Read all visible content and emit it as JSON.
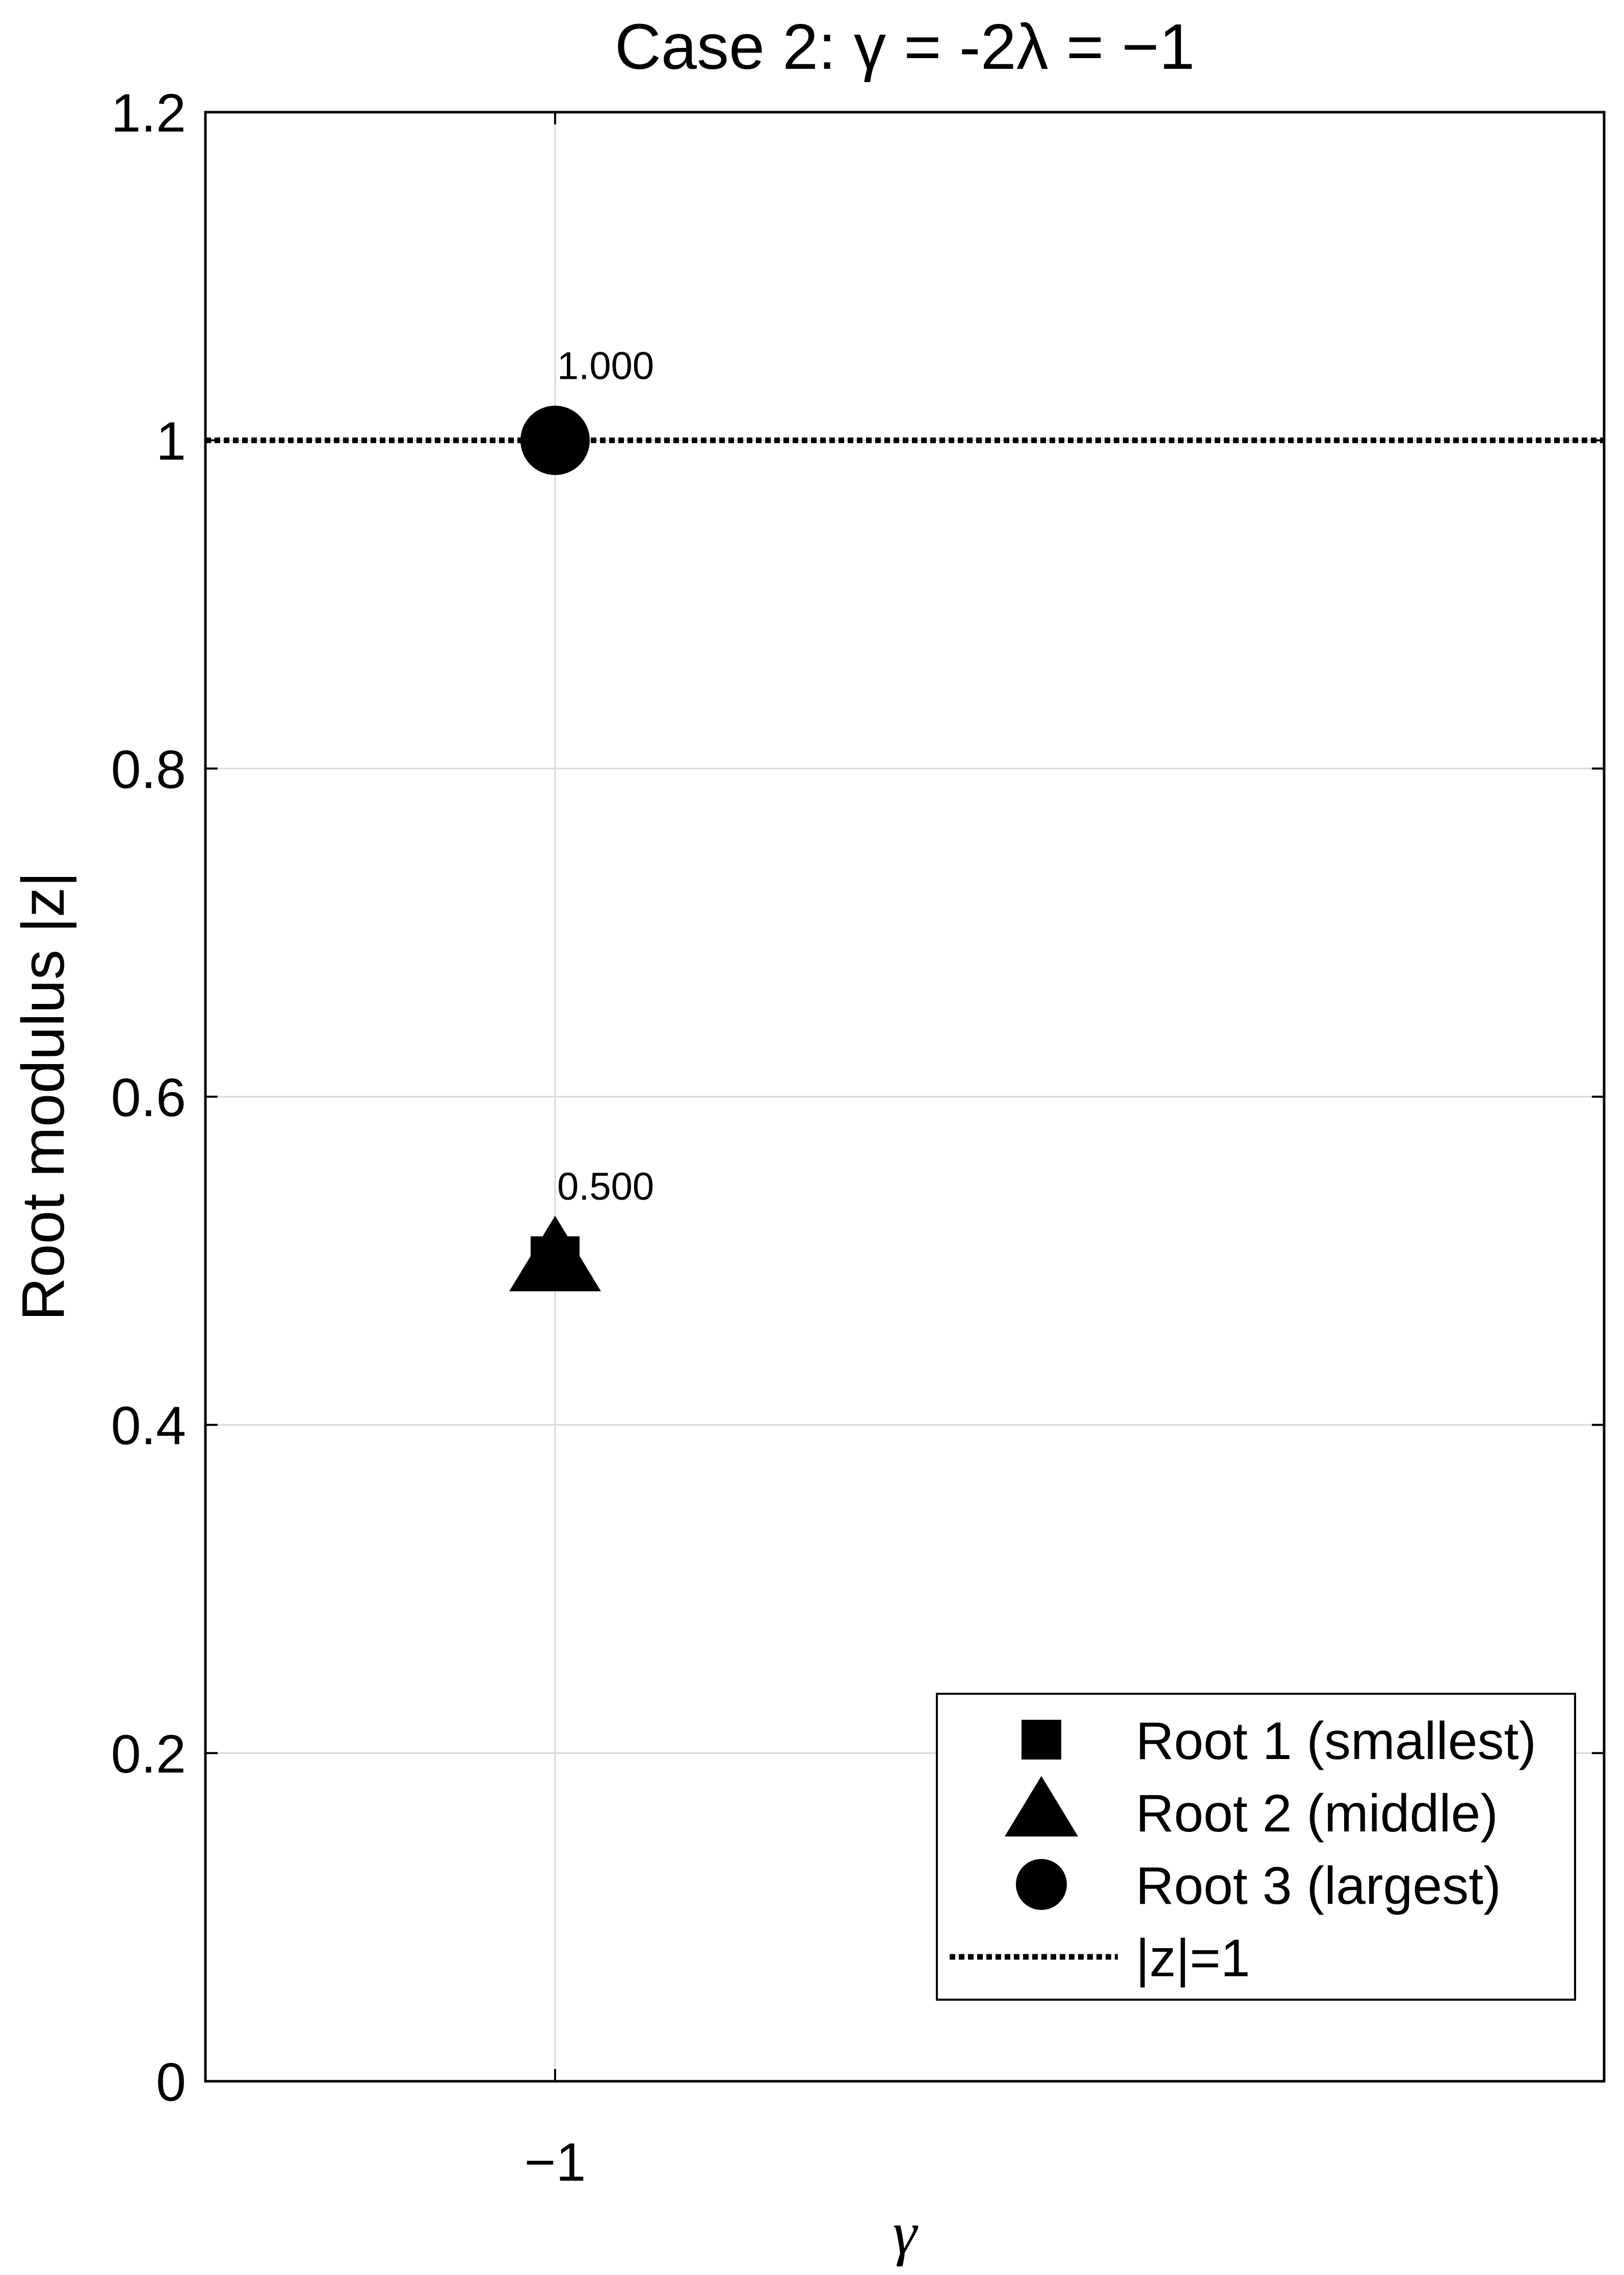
{
  "chart_data": {
    "type": "scatter",
    "title": "Case 2: γ = -2λ = −1",
    "xlabel": "γ",
    "ylabel": "Root modulus |z|",
    "xlim": [
      -1.5,
      0.5
    ],
    "ylim": [
      0,
      1.2
    ],
    "x_ticks": [
      {
        "value": -1,
        "label": "−1"
      }
    ],
    "y_ticks": [
      {
        "value": 0,
        "label": "0"
      },
      {
        "value": 0.2,
        "label": "0.2"
      },
      {
        "value": 0.4,
        "label": "0.4"
      },
      {
        "value": 0.6,
        "label": "0.6"
      },
      {
        "value": 0.8,
        "label": "0.8"
      },
      {
        "value": 1,
        "label": "1"
      },
      {
        "value": 1.2,
        "label": "1.2"
      }
    ],
    "grid": true,
    "legend_position": "bottom-right",
    "series": [
      {
        "name": "Root 1 (smallest)",
        "marker": "square",
        "x": [
          -1
        ],
        "y": [
          0.5
        ]
      },
      {
        "name": "Root 2 (middle)",
        "marker": "triangle",
        "x": [
          -1
        ],
        "y": [
          0.5
        ]
      },
      {
        "name": "Root 3 (largest)",
        "marker": "circle",
        "x": [
          -1
        ],
        "y": [
          1.0
        ]
      }
    ],
    "reference_line": {
      "name": "|z|=1",
      "y": 1,
      "style": "dotted"
    },
    "annotations": [
      {
        "text": "1.000",
        "x": -1.5,
        "y": 1.0
      },
      {
        "text": "0.500",
        "x": -1.5,
        "y": 0.5
      }
    ],
    "colors": {
      "marker": "#000000",
      "grid": "#d9d9d9",
      "axis": "#000000"
    }
  }
}
